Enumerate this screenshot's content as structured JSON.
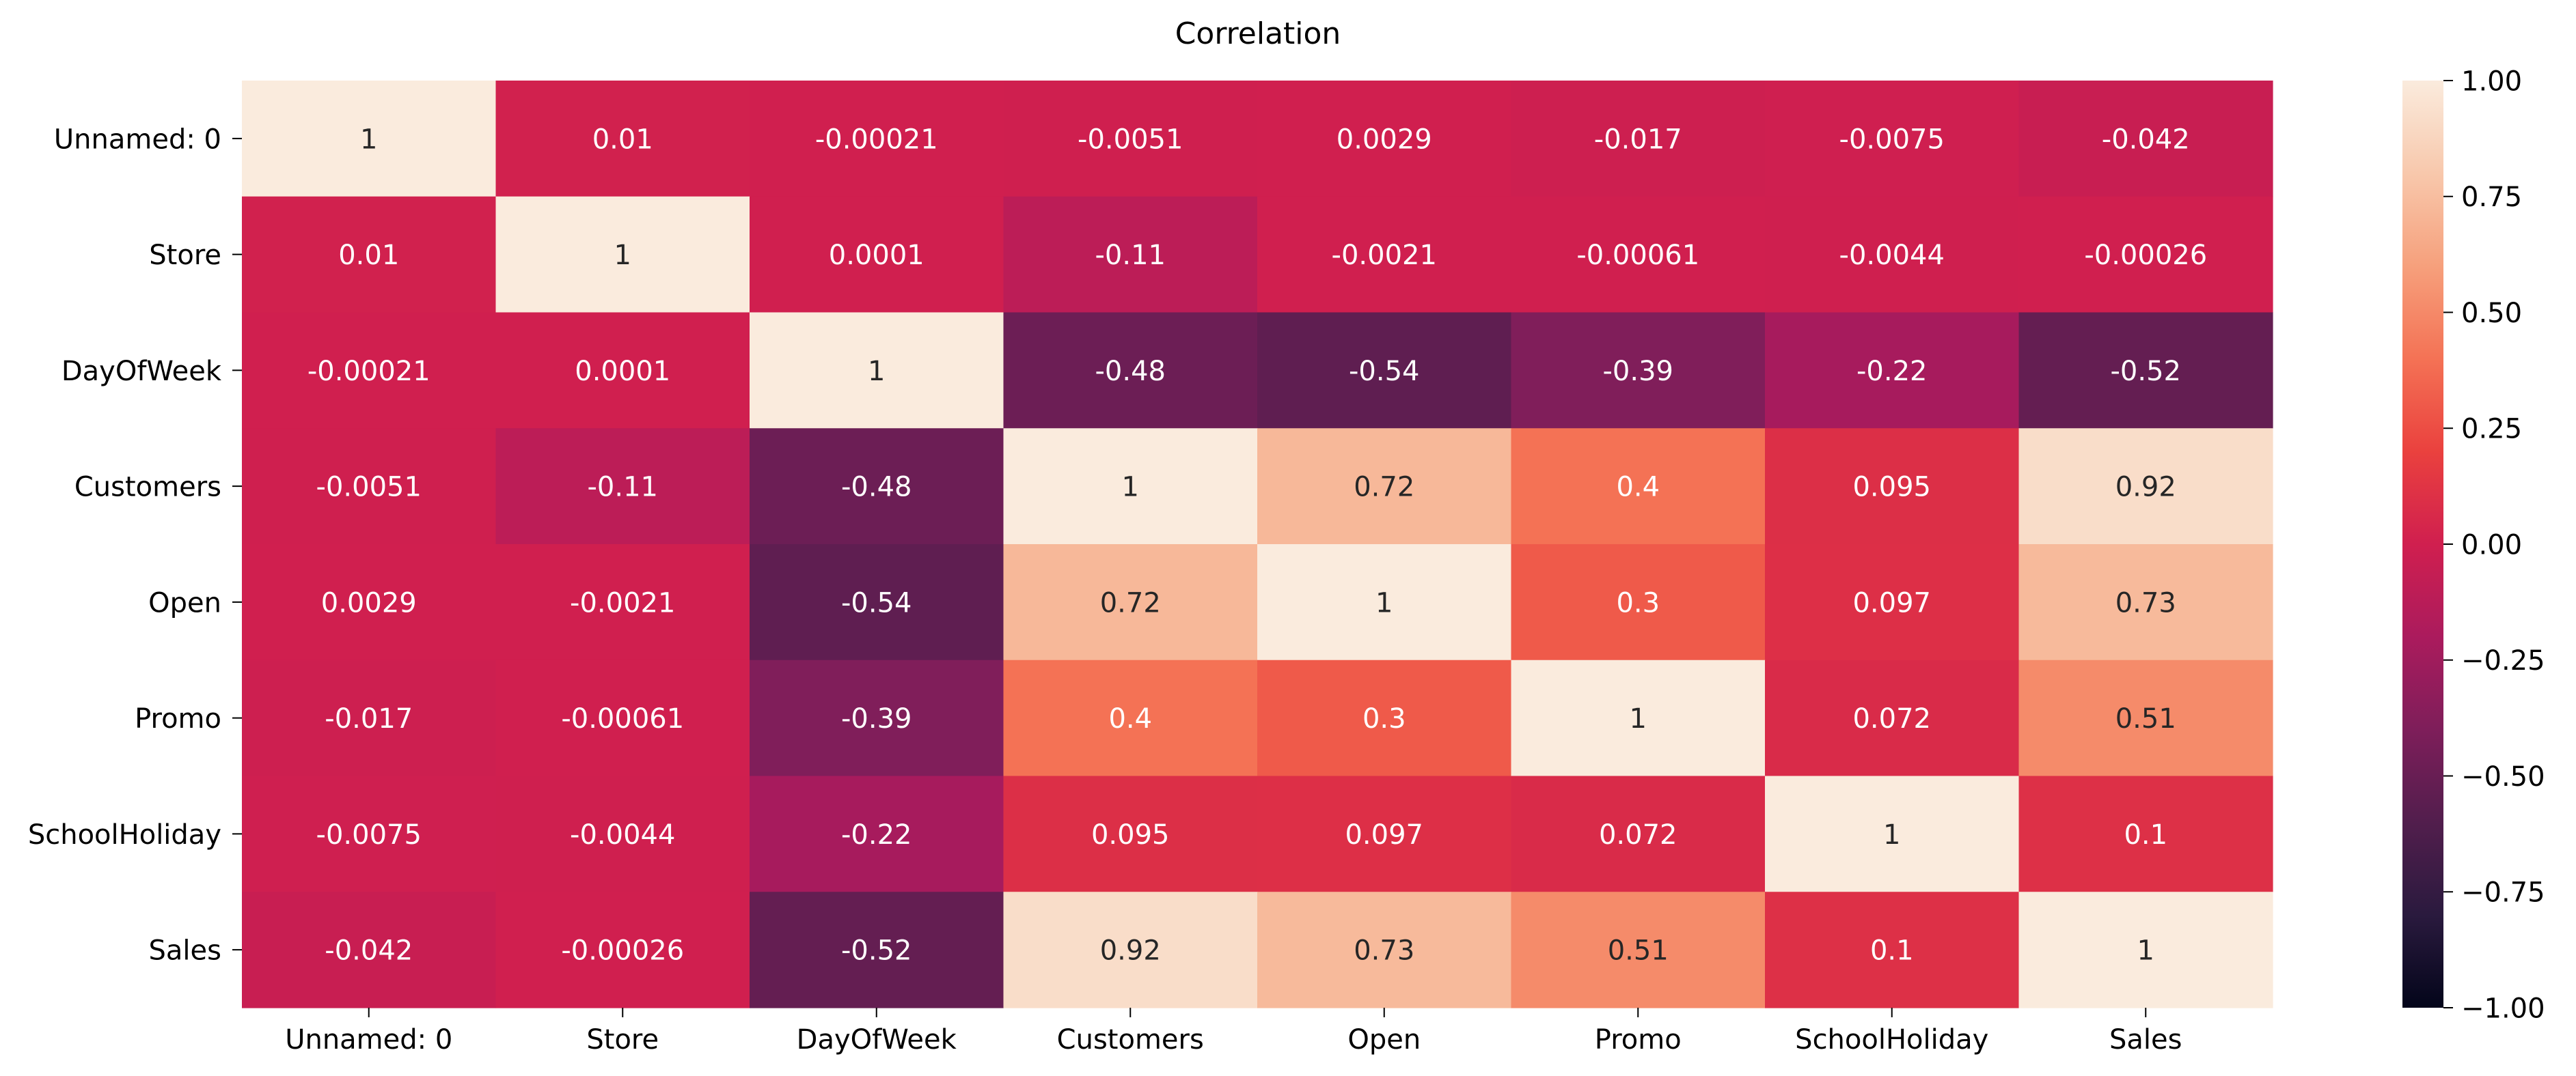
{
  "chart_data": {
    "type": "heatmap",
    "title": "Correlation",
    "rows": [
      "Unnamed: 0",
      "Store",
      "DayOfWeek",
      "Customers",
      "Open",
      "Promo",
      "SchoolHoliday",
      "Sales"
    ],
    "columns": [
      "Unnamed: 0",
      "Store",
      "DayOfWeek",
      "Customers",
      "Open",
      "Promo",
      "SchoolHoliday",
      "Sales"
    ],
    "values": [
      [
        1,
        0.01,
        -0.00021,
        -0.0051,
        0.0029,
        -0.017,
        -0.0075,
        -0.042
      ],
      [
        0.01,
        1,
        0.0001,
        -0.11,
        -0.0021,
        -0.00061,
        -0.0044,
        -0.00026
      ],
      [
        -0.00021,
        0.0001,
        1,
        -0.48,
        -0.54,
        -0.39,
        -0.22,
        -0.52
      ],
      [
        -0.0051,
        -0.11,
        -0.48,
        1,
        0.72,
        0.4,
        0.095,
        0.92
      ],
      [
        0.0029,
        -0.0021,
        -0.54,
        0.72,
        1,
        0.3,
        0.097,
        0.73
      ],
      [
        -0.017,
        -0.00061,
        -0.39,
        0.4,
        0.3,
        1,
        0.072,
        0.51
      ],
      [
        -0.0075,
        -0.0044,
        -0.22,
        0.095,
        0.097,
        0.072,
        1,
        0.1
      ],
      [
        -0.042,
        -0.00026,
        -0.52,
        0.92,
        0.73,
        0.51,
        0.1,
        1
      ]
    ],
    "annotations": [
      [
        "1",
        "0.01",
        "-0.00021",
        "-0.0051",
        "0.0029",
        "-0.017",
        "-0.0075",
        "-0.042"
      ],
      [
        "0.01",
        "1",
        "0.0001",
        "-0.11",
        "-0.0021",
        "-0.00061",
        "-0.0044",
        "-0.00026"
      ],
      [
        "-0.00021",
        "0.0001",
        "1",
        "-0.48",
        "-0.54",
        "-0.39",
        "-0.22",
        "-0.52"
      ],
      [
        "-0.0051",
        "-0.11",
        "-0.48",
        "1",
        "0.72",
        "0.4",
        "0.095",
        "0.92"
      ],
      [
        "0.0029",
        "-0.0021",
        "-0.54",
        "0.72",
        "1",
        "0.3",
        "0.097",
        "0.73"
      ],
      [
        "-0.017",
        "-0.00061",
        "-0.39",
        "0.4",
        "0.3",
        "1",
        "0.072",
        "0.51"
      ],
      [
        "-0.0075",
        "-0.0044",
        "-0.22",
        "0.095",
        "0.097",
        "0.072",
        "1",
        "0.1"
      ],
      [
        "-0.042",
        "-0.00026",
        "-0.52",
        "0.92",
        "0.73",
        "0.51",
        "0.1",
        "1"
      ]
    ],
    "colorbar": {
      "range": [
        -1.0,
        1.0
      ],
      "ticks": [
        "1.00",
        "0.75",
        "0.50",
        "0.25",
        "0.00",
        "−0.25",
        "−0.50",
        "−0.75",
        "−1.00"
      ],
      "tick_values": [
        1.0,
        0.75,
        0.5,
        0.25,
        0.0,
        -0.25,
        -0.5,
        -0.75,
        -1.0
      ],
      "colormap": "rocket",
      "colormap_stops": [
        "#03051a",
        "#2a1a3e",
        "#521e4d",
        "#7e1e5a",
        "#ab1b5d",
        "#d01f4f",
        "#ea413e",
        "#f47255",
        "#f6a07c",
        "#f8c8ac",
        "#faebdd"
      ]
    },
    "grid": false
  }
}
